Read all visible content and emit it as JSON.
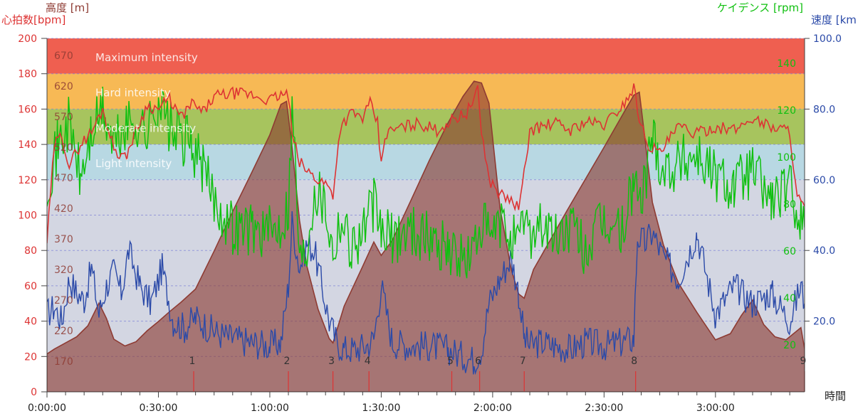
{
  "colors": {
    "heart_rate": "#dd3333",
    "altitude": "#8e3b33",
    "altitude_fill": "#8b3a30",
    "cadence": "#10c010",
    "speed": "#2b4aa8",
    "zone_max": "#ef5f50",
    "zone_hard": "#f7b955",
    "zone_moderate": "#a7c45e",
    "zone_light": "#b8d8e3",
    "zone_easy": "#d3d6e2",
    "lap_marker": "#dd3333"
  },
  "chart_data": {
    "type": "line",
    "axes": {
      "altitude": {
        "title": "高度 [m]",
        "ticks": [
          170,
          220,
          270,
          320,
          370,
          420,
          470,
          520,
          570,
          620,
          670
        ]
      },
      "heart_rate": {
        "title": "心拍数[bpm]",
        "range": [
          0,
          200
        ],
        "ticks": [
          0,
          20,
          40,
          60,
          80,
          100,
          120,
          140,
          160,
          180,
          200
        ]
      },
      "cadence": {
        "title": "ケイデンス [rpm]",
        "ticks": [
          20,
          40,
          60,
          80,
          100,
          120,
          140
        ]
      },
      "speed": {
        "title": "速度 [km",
        "range": [
          0,
          100
        ],
        "ticks": [
          "20.0",
          "40.0",
          "60.0",
          "80.0",
          "100.0"
        ]
      },
      "time": {
        "title": "時間",
        "range_minutes": [
          0,
          204
        ],
        "ticks": [
          "0:00:00",
          "0:30:00",
          "1:00:00",
          "1:30:00",
          "2:00:00",
          "2:30:00",
          "3:00:00"
        ]
      }
    },
    "zones": [
      {
        "label": "Maximum intensity",
        "from": 180,
        "to": 200
      },
      {
        "label": "Hard intensity",
        "from": 160,
        "to": 180
      },
      {
        "label": "Moderate intensity",
        "from": 140,
        "to": 160
      },
      {
        "label": "Light intensity",
        "from": 120,
        "to": 140
      },
      {
        "label": "",
        "from": 0,
        "to": 120
      }
    ],
    "laps": [
      {
        "label": "1",
        "t": 39.5
      },
      {
        "label": "2",
        "t": 65.0
      },
      {
        "label": "3",
        "t": 77.0
      },
      {
        "label": "4",
        "t": 86.7
      },
      {
        "label": "5",
        "t": 109.0
      },
      {
        "label": "6",
        "t": 116.5
      },
      {
        "label": "7",
        "t": 128.5
      },
      {
        "label": "8",
        "t": 158.5
      },
      {
        "label": "9",
        "t": 204.0
      }
    ],
    "series": [
      {
        "key": "altitude",
        "axis": "altitude",
        "x": [
          0,
          2,
          5,
          8,
          11,
          14,
          16,
          18,
          21,
          24,
          27,
          30,
          33,
          36,
          40,
          45,
          50,
          55,
          60,
          63,
          64.5,
          66,
          68,
          70,
          73,
          76,
          77,
          80,
          85,
          88,
          90,
          93,
          98,
          103,
          108,
          112,
          115,
          117,
          119,
          122,
          125,
          127,
          128.5,
          131,
          140,
          150,
          158,
          159.5,
          161,
          163,
          166,
          170,
          175,
          180,
          184,
          187,
          190,
          193,
          196,
          199,
          201,
          203,
          204
        ],
        "y": [
          182,
          190,
          200,
          210,
          228,
          265,
          240,
          206,
          195,
          202,
          220,
          235,
          251,
          266,
          288,
          350,
          415,
          477,
          540,
          590,
          595,
          520,
          400,
          325,
          255,
          207,
          200,
          260,
          325,
          365,
          343,
          368,
          433,
          499,
          560,
          603,
          628,
          625,
          592,
          420,
          320,
          280,
          273,
          320,
          416,
          520,
          605,
          610,
          535,
          430,
          360,
          298,
          250,
          205,
          215,
          245,
          270,
          230,
          210,
          205,
          215,
          225,
          190
        ]
      },
      {
        "key": "heart_rate",
        "axis": "heart_rate",
        "x": [
          0,
          2,
          4,
          6,
          9,
          12,
          15,
          18,
          21,
          24,
          27,
          30,
          33,
          36,
          39,
          42,
          45,
          50,
          55,
          60,
          63,
          65,
          66,
          68,
          70,
          73,
          75,
          77,
          79,
          82,
          85,
          87,
          89,
          90,
          91,
          93,
          96,
          100,
          105,
          110,
          113,
          116,
          117,
          119,
          122,
          125,
          127,
          128,
          130,
          133,
          137,
          141,
          145,
          150,
          155,
          158,
          160,
          162,
          165,
          170,
          175,
          180,
          185,
          190,
          195,
          200,
          202,
          204
        ],
        "y": [
          85,
          140,
          145,
          128,
          140,
          147,
          160,
          138,
          132,
          148,
          162,
          160,
          166,
          155,
          163,
          158,
          167,
          169,
          168,
          165,
          168,
          168,
          145,
          130,
          125,
          120,
          118,
          112,
          150,
          158,
          155,
          163,
          152,
          128,
          145,
          148,
          150,
          152,
          148,
          155,
          158,
          170,
          148,
          120,
          112,
          108,
          104,
          115,
          148,
          150,
          152,
          148,
          153,
          151,
          162,
          172,
          150,
          140,
          135,
          150,
          146,
          150,
          148,
          155,
          150,
          148,
          110,
          105
        ]
      },
      {
        "key": "cadence",
        "axis": "heart_rate",
        "x": [
          0,
          3,
          6,
          9,
          12,
          15,
          18,
          21,
          24,
          27,
          30,
          33,
          36,
          39,
          42,
          45,
          50,
          55,
          60,
          63,
          65,
          66,
          67,
          68,
          70,
          72,
          75,
          77,
          79,
          82,
          85,
          88,
          90,
          93,
          98,
          103,
          108,
          112,
          115,
          117,
          119,
          122,
          125,
          127,
          128.5,
          130,
          133,
          137,
          141,
          145,
          150,
          155,
          158,
          160,
          163,
          166,
          170,
          175,
          180,
          185,
          190,
          195,
          200,
          203,
          204
        ],
        "y": [
          90,
          105,
          115,
          90,
          110,
          120,
          105,
          112,
          115,
          110,
          125,
          112,
          108,
          105,
          95,
          82,
          70,
          70,
          68,
          72,
          80,
          120,
          95,
          55,
          62,
          88,
          80,
          60,
          75,
          62,
          68,
          80,
          68,
          65,
          70,
          65,
          62,
          55,
          60,
          72,
          65,
          70,
          68,
          60,
          75,
          68,
          72,
          65,
          70,
          60,
          72,
          68,
          90,
          80,
          110,
          95,
          98,
          102,
          92,
          88,
          95,
          82,
          86,
          75,
          70
        ]
      },
      {
        "key": "speed",
        "axis": "speed",
        "x": [
          0,
          2,
          4,
          6,
          8,
          10,
          12,
          14,
          16,
          18,
          20,
          22,
          25,
          28,
          31,
          34,
          37,
          40,
          45,
          50,
          55,
          60,
          63,
          65,
          66,
          68,
          70,
          72,
          74,
          76,
          78,
          80,
          83,
          86,
          88,
          90,
          93,
          98,
          103,
          108,
          112,
          115,
          117,
          119,
          122,
          125,
          127,
          128.5,
          130,
          133,
          137,
          141,
          145,
          150,
          155,
          158,
          159,
          161,
          163,
          166,
          170,
          175,
          180,
          185,
          190,
          195,
          200,
          203,
          204
        ],
        "y": [
          22,
          24,
          20,
          32,
          28,
          26,
          35,
          22,
          30,
          34,
          28,
          40,
          30,
          25,
          35,
          20,
          18,
          21,
          17,
          15,
          14,
          13,
          14,
          30,
          48,
          35,
          42,
          40,
          30,
          20,
          14,
          12,
          12,
          13,
          15,
          30,
          14,
          13,
          13,
          12,
          10,
          9,
          12,
          25,
          32,
          38,
          28,
          15,
          13,
          14,
          13,
          12,
          14,
          13,
          14,
          15,
          44,
          42,
          45,
          38,
          32,
          45,
          22,
          30,
          25,
          28,
          20,
          30,
          25
        ]
      }
    ]
  }
}
